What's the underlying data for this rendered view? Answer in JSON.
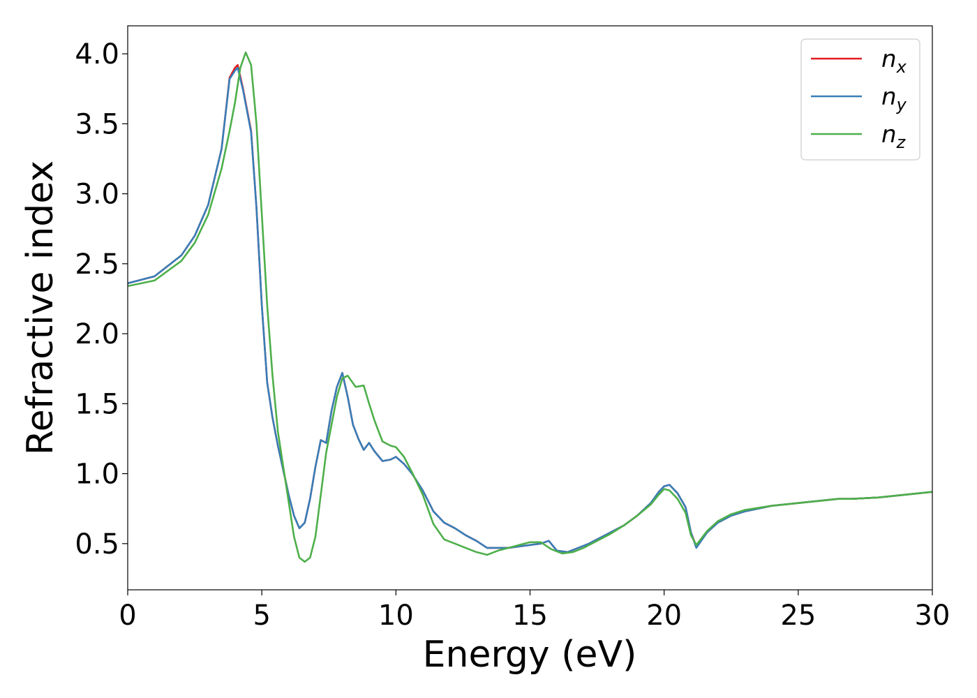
{
  "chart_data": {
    "type": "line",
    "xlabel": "Energy (eV)",
    "ylabel": "Refractive index",
    "xlim": [
      0,
      30
    ],
    "ylim": [
      0.17,
      4.2
    ],
    "xticks": [
      "0",
      "5",
      "10",
      "15",
      "20",
      "25",
      "30"
    ],
    "yticks": [
      "0.5",
      "1.0",
      "1.5",
      "2.0",
      "2.5",
      "3.0",
      "3.5",
      "4.0"
    ],
    "grid": false,
    "legend_position": "top-right",
    "series": [
      {
        "name": "n_x",
        "label_main": "n",
        "label_sub": "x",
        "color": "#e41a1c",
        "x": [
          0,
          1,
          2,
          2.5,
          3,
          3.5,
          3.8,
          4.0,
          4.1,
          4.3,
          4.6,
          4.8,
          5.0,
          5.2,
          5.4,
          5.6,
          6.0,
          6.2,
          6.4,
          6.6,
          6.8,
          7.0,
          7.2,
          7.4,
          7.6,
          7.8,
          8.0,
          8.2,
          8.4,
          8.6,
          8.8,
          9.0,
          9.2,
          9.5,
          9.8,
          10.0,
          10.3,
          10.6,
          11.0,
          11.4,
          11.8,
          12.2,
          12.6,
          13.0,
          13.4,
          13.8,
          14.2,
          14.6,
          15.0,
          15.4,
          15.7,
          16.0,
          16.4,
          16.8,
          17.2,
          17.6,
          18.0,
          18.5,
          19.0,
          19.5,
          19.8,
          20.0,
          20.2,
          20.5,
          20.8,
          21.0,
          21.2,
          21.6,
          22.0,
          22.5,
          23,
          24,
          25,
          26,
          26.5,
          27,
          28,
          29,
          30
        ],
        "y": [
          2.36,
          2.41,
          2.56,
          2.7,
          2.92,
          3.32,
          3.83,
          3.9,
          3.92,
          3.75,
          3.45,
          2.9,
          2.2,
          1.65,
          1.4,
          1.2,
          0.85,
          0.7,
          0.61,
          0.65,
          0.82,
          1.05,
          1.24,
          1.22,
          1.45,
          1.62,
          1.72,
          1.55,
          1.35,
          1.25,
          1.17,
          1.22,
          1.16,
          1.09,
          1.1,
          1.12,
          1.07,
          1.0,
          0.88,
          0.73,
          0.65,
          0.61,
          0.56,
          0.52,
          0.47,
          0.47,
          0.47,
          0.48,
          0.49,
          0.5,
          0.52,
          0.45,
          0.44,
          0.47,
          0.5,
          0.54,
          0.58,
          0.63,
          0.7,
          0.79,
          0.87,
          0.91,
          0.92,
          0.86,
          0.76,
          0.58,
          0.48,
          0.58,
          0.65,
          0.7,
          0.73,
          0.77,
          0.79,
          0.81,
          0.82,
          0.82,
          0.83,
          0.85,
          0.87
        ]
      },
      {
        "name": "n_y",
        "label_main": "n",
        "label_sub": "y",
        "color": "#377eb8",
        "x": [
          0,
          1,
          2,
          2.5,
          3,
          3.5,
          3.8,
          4.0,
          4.1,
          4.3,
          4.6,
          4.8,
          5.0,
          5.2,
          5.4,
          5.6,
          6.0,
          6.2,
          6.4,
          6.6,
          6.8,
          7.0,
          7.2,
          7.4,
          7.6,
          7.8,
          8.0,
          8.2,
          8.4,
          8.6,
          8.8,
          9.0,
          9.2,
          9.5,
          9.8,
          10.0,
          10.3,
          10.6,
          11.0,
          11.4,
          11.8,
          12.2,
          12.6,
          13.0,
          13.4,
          13.8,
          14.2,
          14.6,
          15.0,
          15.4,
          15.7,
          16.0,
          16.4,
          16.8,
          17.2,
          17.6,
          18.0,
          18.5,
          19.0,
          19.5,
          19.8,
          20.0,
          20.2,
          20.5,
          20.8,
          21.0,
          21.2,
          21.6,
          22.0,
          22.5,
          23,
          24,
          25,
          26,
          26.5,
          27,
          28,
          29,
          30
        ],
        "y": [
          2.36,
          2.41,
          2.56,
          2.7,
          2.92,
          3.32,
          3.82,
          3.88,
          3.9,
          3.74,
          3.44,
          2.9,
          2.2,
          1.65,
          1.4,
          1.2,
          0.85,
          0.7,
          0.61,
          0.65,
          0.82,
          1.05,
          1.24,
          1.22,
          1.45,
          1.62,
          1.72,
          1.55,
          1.35,
          1.25,
          1.17,
          1.22,
          1.16,
          1.09,
          1.1,
          1.12,
          1.07,
          1.0,
          0.88,
          0.73,
          0.65,
          0.61,
          0.56,
          0.52,
          0.47,
          0.47,
          0.47,
          0.48,
          0.49,
          0.5,
          0.52,
          0.45,
          0.44,
          0.47,
          0.5,
          0.54,
          0.58,
          0.63,
          0.7,
          0.79,
          0.87,
          0.91,
          0.92,
          0.86,
          0.76,
          0.58,
          0.47,
          0.58,
          0.65,
          0.7,
          0.73,
          0.77,
          0.79,
          0.81,
          0.82,
          0.82,
          0.83,
          0.85,
          0.87
        ]
      },
      {
        "name": "n_z",
        "label_main": "n",
        "label_sub": "z",
        "color": "#4daf4a",
        "x": [
          0,
          1,
          2,
          2.5,
          3,
          3.5,
          3.8,
          4.0,
          4.2,
          4.4,
          4.6,
          4.8,
          5.0,
          5.2,
          5.4,
          5.6,
          5.8,
          6.0,
          6.2,
          6.4,
          6.6,
          6.8,
          7.0,
          7.2,
          7.4,
          7.6,
          7.8,
          8.0,
          8.2,
          8.5,
          8.8,
          9.0,
          9.2,
          9.5,
          9.8,
          10.0,
          10.3,
          10.6,
          11.0,
          11.4,
          11.8,
          12.2,
          12.6,
          13.0,
          13.4,
          13.8,
          14.2,
          14.6,
          15.0,
          15.4,
          15.8,
          16.2,
          16.6,
          17.0,
          17.5,
          18.0,
          18.5,
          19.0,
          19.5,
          19.8,
          20.0,
          20.2,
          20.5,
          20.8,
          21.0,
          21.2,
          21.6,
          22.0,
          22.5,
          23,
          24,
          25,
          26,
          26.5,
          27,
          28,
          29,
          30
        ],
        "y": [
          2.34,
          2.38,
          2.52,
          2.65,
          2.85,
          3.18,
          3.45,
          3.65,
          3.9,
          4.01,
          3.92,
          3.5,
          2.85,
          2.2,
          1.7,
          1.3,
          1.05,
          0.8,
          0.55,
          0.4,
          0.37,
          0.4,
          0.55,
          0.85,
          1.15,
          1.35,
          1.55,
          1.68,
          1.7,
          1.62,
          1.63,
          1.5,
          1.38,
          1.23,
          1.2,
          1.19,
          1.12,
          1.01,
          0.85,
          0.64,
          0.53,
          0.5,
          0.47,
          0.44,
          0.42,
          0.45,
          0.47,
          0.49,
          0.51,
          0.51,
          0.46,
          0.43,
          0.44,
          0.47,
          0.52,
          0.57,
          0.63,
          0.7,
          0.78,
          0.85,
          0.89,
          0.88,
          0.82,
          0.72,
          0.56,
          0.49,
          0.59,
          0.66,
          0.71,
          0.74,
          0.77,
          0.79,
          0.81,
          0.82,
          0.82,
          0.83,
          0.85,
          0.87
        ]
      }
    ]
  }
}
